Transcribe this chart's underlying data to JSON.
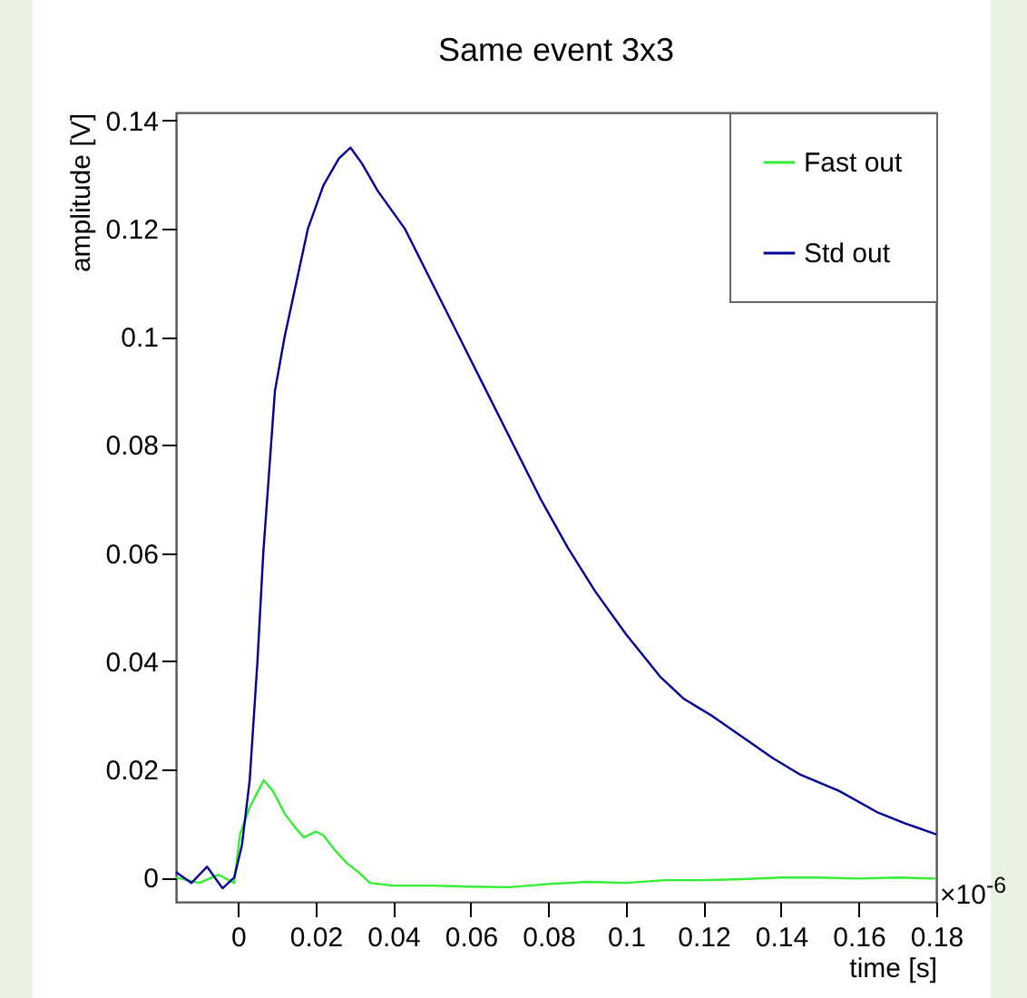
{
  "chart_data": {
    "type": "line",
    "title": "Same event 3x3",
    "xlabel": "time [s]",
    "ylabel": "amplitude [V]",
    "annotations": [
      "×10$^{-6}$"
    ],
    "xlim": [
      -0.016,
      0.18
    ],
    "xticks": [
      0,
      0.02,
      0.04,
      0.06,
      0.08,
      0.1,
      0.12,
      0.14,
      0.16,
      0.18
    ],
    "ylim": [
      -0.0045,
      0.1415
    ],
    "yticks": [
      0,
      0.02,
      0.04,
      0.06,
      0.08,
      0.1,
      0.12,
      0.14
    ],
    "grid": false,
    "legend": "top right",
    "marker": "none",
    "line_style": "solid",
    "series": [
      {
        "name": "Fast out",
        "color": "#33ee33",
        "x": [
          -0.016,
          -0.01,
          -0.005,
          -0.001,
          0.0005,
          0.003,
          0.0066,
          0.009,
          0.012,
          0.015,
          0.017,
          0.02,
          0.022,
          0.025,
          0.028,
          0.031,
          0.034,
          0.04,
          0.05,
          0.06,
          0.07,
          0.08,
          0.09,
          0.1,
          0.11,
          0.12,
          0.13,
          0.14,
          0.15,
          0.16,
          0.17,
          0.18
        ],
        "values": [
          0,
          -0.001,
          0.0005,
          -0.001,
          0.008,
          0.013,
          0.018,
          0.016,
          0.0118,
          0.009,
          0.0074,
          0.0085,
          0.0078,
          0.005,
          0.0027,
          0.001,
          -0.001,
          -0.0015,
          -0.0015,
          -0.0017,
          -0.0018,
          -0.0012,
          -0.0008,
          -0.001,
          -0.0005,
          -0.0005,
          -0.0003,
          0,
          0,
          -0.0002,
          0,
          -0.0002
        ]
      },
      {
        "name": "Std out",
        "color": "#000099",
        "x": [
          -0.016,
          -0.012,
          -0.008,
          -0.004,
          -0.001,
          0.001,
          0.003,
          0.005,
          0.0065,
          0.008,
          0.0095,
          0.012,
          0.015,
          0.018,
          0.022,
          0.026,
          0.029,
          0.032,
          0.036,
          0.043,
          0.05,
          0.057,
          0.064,
          0.071,
          0.078,
          0.085,
          0.092,
          0.1,
          0.109,
          0.115,
          0.122,
          0.13,
          0.138,
          0.145,
          0.155,
          0.165,
          0.172,
          0.18
        ],
        "values": [
          0.001,
          -0.001,
          0.002,
          -0.002,
          0,
          0.006,
          0.018,
          0.04,
          0.06,
          0.075,
          0.09,
          0.1,
          0.11,
          0.12,
          0.128,
          0.133,
          0.135,
          0.132,
          0.127,
          0.12,
          0.11,
          0.1,
          0.09,
          0.08,
          0.07,
          0.061,
          0.053,
          0.045,
          0.037,
          0.033,
          0.03,
          0.026,
          0.022,
          0.019,
          0.016,
          0.012,
          0.01,
          0.008
        ]
      }
    ]
  }
}
